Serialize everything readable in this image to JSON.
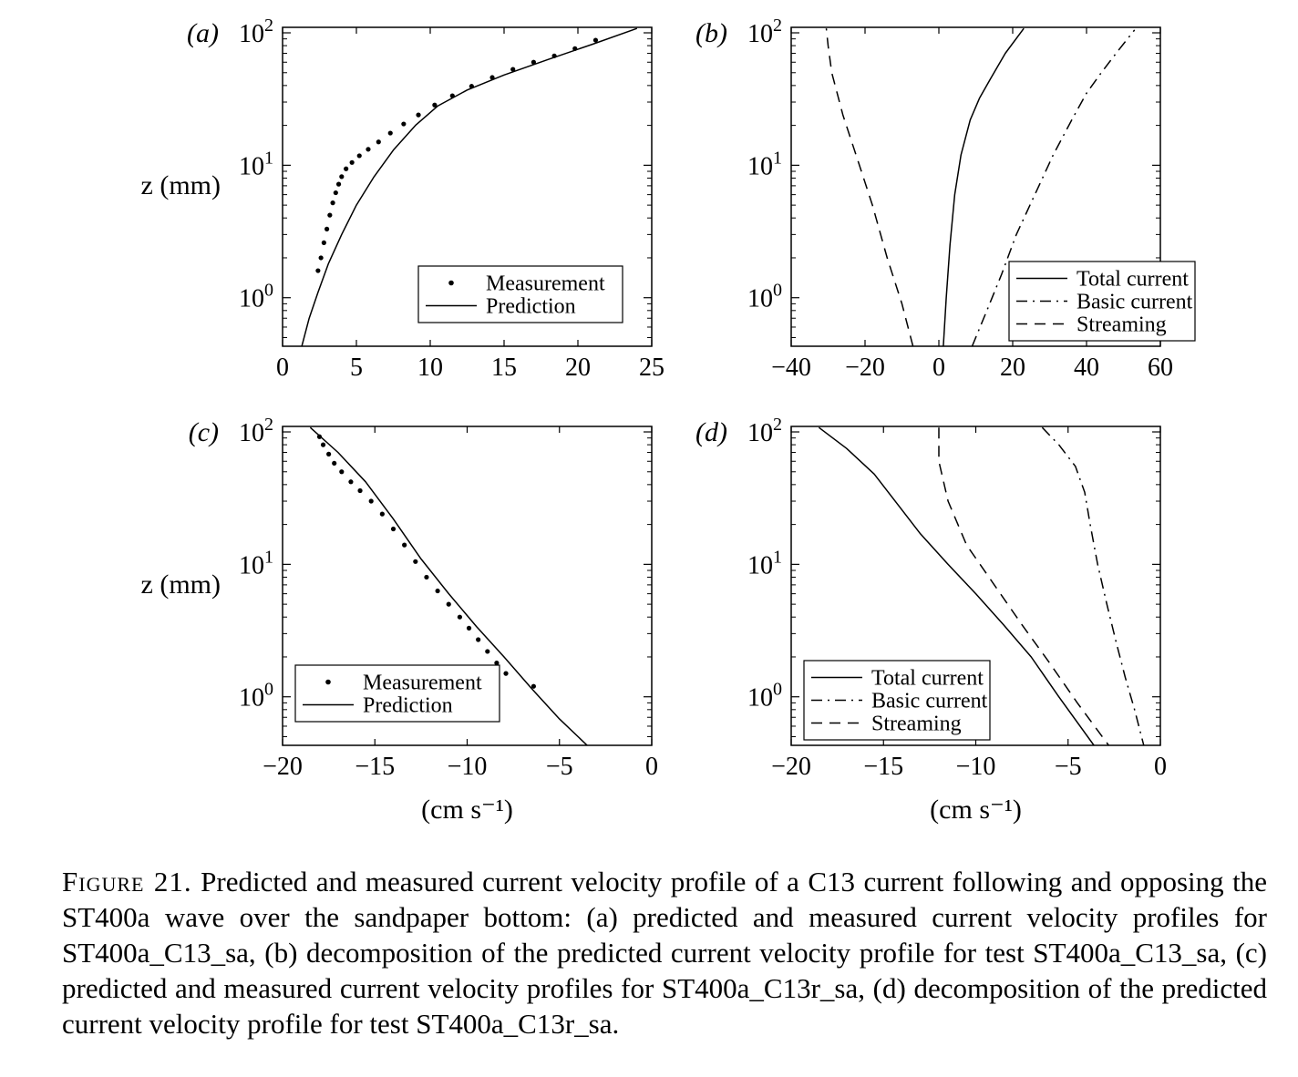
{
  "chart_data": [
    {
      "panel_label": "(a)",
      "type": "line",
      "ylabel": "z (mm)",
      "xlabel": "",
      "xlim": [
        0,
        25
      ],
      "xticks": [
        0,
        5,
        10,
        15,
        20,
        25
      ],
      "ylim": [
        0.43,
        110
      ],
      "yscale": "log",
      "yticks": [
        1,
        10,
        100
      ],
      "ytick_labels": [
        "10^0",
        "10^1",
        "10^2"
      ],
      "legend": {
        "placement": "bottom-right",
        "entries": [
          "Measurement",
          "Prediction"
        ]
      },
      "series": [
        {
          "name": "Measurement",
          "style": "dots",
          "x": [
            2.4,
            2.6,
            2.8,
            3.0,
            3.2,
            3.4,
            3.6,
            3.8,
            4.0,
            4.3,
            4.7,
            5.2,
            5.8,
            6.5,
            7.3,
            8.2,
            9.2,
            10.3,
            11.5,
            12.8,
            14.2,
            15.6,
            17.0,
            18.4,
            19.8,
            21.2
          ],
          "y": [
            1.6,
            2.0,
            2.6,
            3.3,
            4.2,
            5.2,
            6.2,
            7.2,
            8.2,
            9.4,
            10.5,
            11.8,
            13.2,
            15.0,
            17.5,
            20.5,
            24.0,
            28.5,
            33.5,
            39.5,
            46.0,
            53.0,
            60.0,
            67.0,
            76.0,
            88.0
          ]
        },
        {
          "name": "Prediction",
          "style": "solid",
          "x": [
            1.3,
            1.8,
            2.4,
            3.1,
            4.0,
            5.0,
            6.2,
            7.5,
            9.0,
            10.5,
            12.5,
            15.0,
            18.0,
            21.0,
            24.0
          ],
          "y": [
            0.43,
            0.7,
            1.1,
            1.8,
            3.0,
            5.0,
            8.2,
            13.0,
            20.0,
            28.0,
            37.0,
            48.0,
            63.0,
            82.0,
            108.0
          ]
        }
      ]
    },
    {
      "panel_label": "(b)",
      "type": "line",
      "ylabel": "",
      "xlabel": "",
      "xlim": [
        -40,
        60
      ],
      "xticks": [
        -40,
        -20,
        0,
        20,
        40,
        60
      ],
      "ylim": [
        0.43,
        110
      ],
      "yscale": "log",
      "yticks": [
        1,
        10,
        100
      ],
      "ytick_labels": [
        "10^0",
        "10^1",
        "10^2"
      ],
      "legend": {
        "placement": "bottom-right",
        "entries": [
          "Total current",
          "Basic current",
          "Streaming"
        ]
      },
      "series": [
        {
          "name": "Total current",
          "style": "solid",
          "x": [
            1.2,
            2.0,
            3.0,
            4.3,
            6.0,
            8.5,
            11.0,
            14.0,
            18.0,
            23.0
          ],
          "y": [
            0.43,
            1.0,
            2.5,
            6.0,
            12.0,
            22.0,
            32.0,
            45.0,
            70.0,
            108.0
          ]
        },
        {
          "name": "Basic current",
          "style": "dashdot",
          "x": [
            9.0,
            13.0,
            17.0,
            21.0,
            26.0,
            31.0,
            36.0,
            40.0,
            44.0,
            48.0,
            53.0
          ],
          "y": [
            0.43,
            0.8,
            1.5,
            3.0,
            6.0,
            12.0,
            22.0,
            35.0,
            50.0,
            70.0,
            105.0
          ]
        },
        {
          "name": "Streaming",
          "style": "dashed",
          "x": [
            -7.0,
            -10.0,
            -14.0,
            -18.0,
            -22.0,
            -26.0,
            -29.0,
            -30.0,
            -30.5
          ],
          "y": [
            0.43,
            0.9,
            2.0,
            5.0,
            11.0,
            24.0,
            50.0,
            80.0,
            108.0
          ]
        }
      ]
    },
    {
      "panel_label": "(c)",
      "type": "line",
      "ylabel": "z (mm)",
      "xlabel": "(cm s⁻¹)",
      "xlim": [
        -20,
        0
      ],
      "xticks": [
        -20,
        -15,
        -10,
        -5,
        0
      ],
      "ylim": [
        0.43,
        110
      ],
      "yscale": "log",
      "yticks": [
        1,
        10,
        100
      ],
      "ytick_labels": [
        "10^0",
        "10^1",
        "10^2"
      ],
      "legend": {
        "placement": "bottom-left",
        "entries": [
          "Measurement",
          "Prediction"
        ]
      },
      "series": [
        {
          "name": "Measurement",
          "style": "dots",
          "x": [
            -18.0,
            -17.8,
            -17.5,
            -17.2,
            -16.8,
            -16.3,
            -15.8,
            -15.2,
            -14.6,
            -14.0,
            -13.4,
            -12.8,
            -12.2,
            -11.6,
            -11.0,
            -10.4,
            -9.9,
            -9.4,
            -8.9,
            -8.4,
            -7.9,
            -6.4
          ],
          "y": [
            92.0,
            80.0,
            68.0,
            58.0,
            50.0,
            42.0,
            36.0,
            30.0,
            24.0,
            18.5,
            14.0,
            10.5,
            8.0,
            6.3,
            5.0,
            4.0,
            3.3,
            2.7,
            2.2,
            1.8,
            1.5,
            1.2
          ]
        },
        {
          "name": "Prediction",
          "style": "solid",
          "x": [
            -18.5,
            -17.0,
            -15.5,
            -14.0,
            -12.5,
            -11.0,
            -9.5,
            -8.0,
            -6.5,
            -5.0,
            -3.5
          ],
          "y": [
            108.0,
            70.0,
            42.0,
            22.0,
            11.0,
            6.0,
            3.4,
            2.0,
            1.15,
            0.68,
            0.43
          ]
        }
      ]
    },
    {
      "panel_label": "(d)",
      "type": "line",
      "ylabel": "",
      "xlabel": "(cm s⁻¹)",
      "xlim": [
        -20,
        0
      ],
      "xticks": [
        -20,
        -15,
        -10,
        -5,
        0
      ],
      "ylim": [
        0.43,
        110
      ],
      "yscale": "log",
      "yticks": [
        1,
        10,
        100
      ],
      "ytick_labels": [
        "10^0",
        "10^1",
        "10^2"
      ],
      "legend": {
        "placement": "bottom-left",
        "entries": [
          "Total current",
          "Basic current",
          "Streaming"
        ]
      },
      "series": [
        {
          "name": "Total current",
          "style": "solid",
          "x": [
            -18.5,
            -17.0,
            -15.5,
            -14.2,
            -13.0,
            -11.5,
            -10.0,
            -8.5,
            -7.0,
            -5.5,
            -3.6
          ],
          "y": [
            108.0,
            75.0,
            48.0,
            28.0,
            17.0,
            10.0,
            6.0,
            3.5,
            2.0,
            1.0,
            0.43
          ]
        },
        {
          "name": "Basic current",
          "style": "dashdot",
          "x": [
            -6.4,
            -5.5,
            -4.6,
            -4.1,
            -3.8,
            -3.4,
            -2.9,
            -2.4,
            -1.9,
            -1.4,
            -0.9
          ],
          "y": [
            108.0,
            80.0,
            55.0,
            35.0,
            20.0,
            10.0,
            5.0,
            2.6,
            1.4,
            0.8,
            0.43
          ]
        },
        {
          "name": "Streaming",
          "style": "dashed",
          "x": [
            -12.0,
            -12.0,
            -11.5,
            -10.5,
            -9.0,
            -7.5,
            -6.0,
            -4.5,
            -2.8
          ],
          "y": [
            108.0,
            60.0,
            30.0,
            14.0,
            7.0,
            3.5,
            1.8,
            0.9,
            0.43
          ]
        }
      ]
    }
  ],
  "caption": {
    "label": "Figure 21.",
    "text": "Predicted and measured current velocity profile of a C13 current following and opposing the ST400a wave over the sandpaper bottom: (a) predicted and measured current velocity profiles for ST400a_C13_sa, (b) decomposition of the predicted current velocity profile for test ST400a_C13_sa, (c) predicted and measured current velocity profiles for ST400a_C13r_sa, (d) decomposition of the predicted current velocity profile for test ST400a_C13r_sa."
  }
}
